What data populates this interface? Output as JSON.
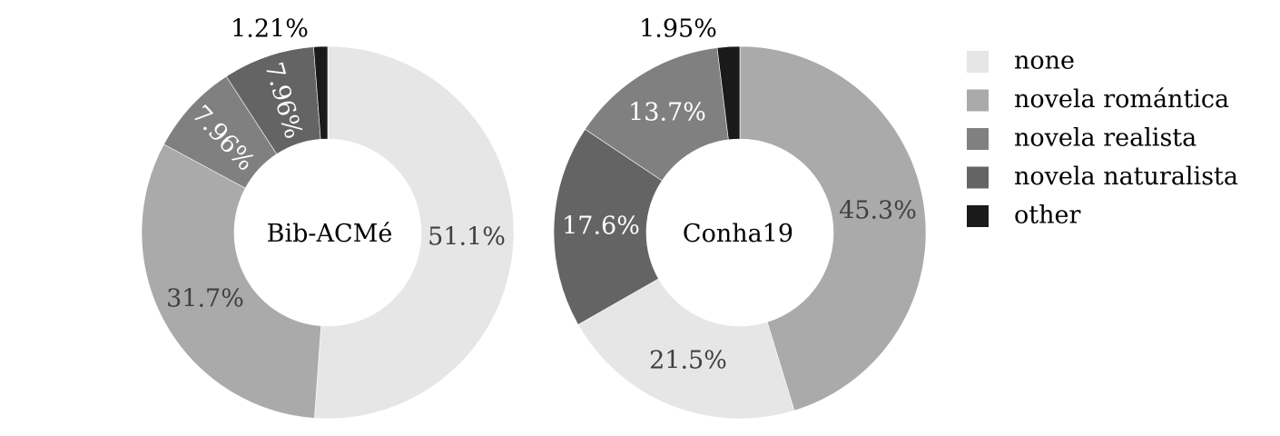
{
  "chart_data": [
    {
      "type": "donut",
      "center_label": "Bib-ACMé",
      "slices": [
        {
          "category": "none",
          "value": 51.1,
          "label": "51.1%"
        },
        {
          "category": "novela romántica",
          "value": 31.7,
          "label": "31.7%"
        },
        {
          "category": "novela realista",
          "value": 7.96,
          "label": "7.96%"
        },
        {
          "category": "novela naturalista",
          "value": 7.96,
          "label": "7.96%"
        },
        {
          "category": "other",
          "value": 1.21,
          "label": "1.21%"
        }
      ]
    },
    {
      "type": "donut",
      "center_label": "Conha19",
      "slices": [
        {
          "category": "novela romántica",
          "value": 45.3,
          "label": "45.3%"
        },
        {
          "category": "none",
          "value": 21.5,
          "label": "21.5%"
        },
        {
          "category": "novela naturalista",
          "value": 17.6,
          "label": "17.6%"
        },
        {
          "category": "novela realista",
          "value": 13.7,
          "label": "13.7%"
        },
        {
          "category": "other",
          "value": 1.95,
          "label": "1.95%"
        }
      ]
    }
  ],
  "legend": {
    "placement": "right",
    "items": [
      {
        "label": "none",
        "color": "#e6e6e6"
      },
      {
        "label": "novela romántica",
        "color": "#aaaaaa"
      },
      {
        "label": "novela realista",
        "color": "#808080"
      },
      {
        "label": "novela naturalista",
        "color": "#646464"
      },
      {
        "label": "other",
        "color": "#1a1a1a"
      }
    ]
  }
}
